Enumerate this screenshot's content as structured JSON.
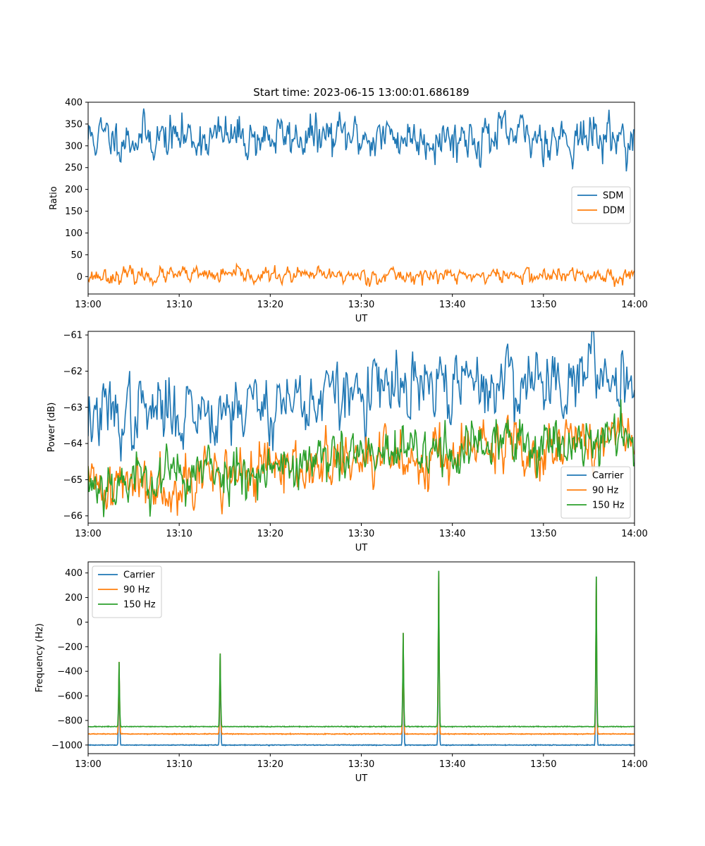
{
  "chart_data": [
    {
      "type": "line",
      "title": "Start time: 2023-06-15 13:00:01.686189",
      "xlabel": "UT",
      "ylabel": "Ratio",
      "xlim": [
        0,
        60
      ],
      "ylim": [
        -40,
        400
      ],
      "xticks": [
        0,
        10,
        20,
        30,
        40,
        50,
        60
      ],
      "xtick_labels": [
        "13:00",
        "13:10",
        "13:20",
        "13:30",
        "13:40",
        "13:50",
        "14:00"
      ],
      "yticks": [
        0,
        50,
        100,
        150,
        200,
        250,
        300,
        350,
        400
      ],
      "ytick_labels": [
        "0",
        "50",
        "100",
        "150",
        "200",
        "250",
        "300",
        "350",
        "400"
      ],
      "legend_position": "center-right",
      "series": [
        {
          "name": "SDM",
          "color": "#1f77b4",
          "mean": 320,
          "noise": 22,
          "trend": 0,
          "seed": 11,
          "points": 600
        },
        {
          "name": "DDM",
          "color": "#ff7f0e",
          "mean": 2,
          "noise": 8,
          "trend": 0,
          "seed": 23,
          "points": 600
        }
      ]
    },
    {
      "type": "line",
      "title": "",
      "xlabel": "UT",
      "ylabel": "Power (dB)",
      "xlim": [
        0,
        60
      ],
      "ylim": [
        -66.2,
        -60.9
      ],
      "xticks": [
        0,
        10,
        20,
        30,
        40,
        50,
        60
      ],
      "xtick_labels": [
        "13:00",
        "13:10",
        "13:20",
        "13:30",
        "13:40",
        "13:50",
        "14:00"
      ],
      "yticks": [
        -66,
        -65,
        -64,
        -63,
        -62,
        -61
      ],
      "ytick_labels": [
        "−66",
        "−65",
        "−64",
        "−63",
        "−62",
        "−61"
      ],
      "legend_position": "lower-right",
      "series": [
        {
          "name": "Carrier",
          "color": "#1f77b4",
          "start": -63.3,
          "end": -62.0,
          "noise": 0.45,
          "seed": 37,
          "points": 500
        },
        {
          "name": "90 Hz",
          "color": "#ff7f0e",
          "start": -65.2,
          "end": -63.8,
          "noise": 0.35,
          "seed": 41,
          "points": 600
        },
        {
          "name": "150 Hz",
          "color": "#2ca02c",
          "start": -65.1,
          "end": -63.7,
          "noise": 0.33,
          "seed": 53,
          "points": 600
        }
      ]
    },
    {
      "type": "line",
      "title": "",
      "xlabel": "UT",
      "ylabel": "Frequency (Hz)",
      "xlim": [
        0,
        60
      ],
      "ylim": [
        -1070,
        490
      ],
      "xticks": [
        0,
        10,
        20,
        30,
        40,
        50,
        60
      ],
      "xtick_labels": [
        "13:00",
        "13:10",
        "13:20",
        "13:30",
        "13:40",
        "13:50",
        "14:00"
      ],
      "yticks": [
        -1000,
        -800,
        -600,
        -400,
        -200,
        0,
        200,
        400
      ],
      "ytick_labels": [
        "−1000",
        "−800",
        "−600",
        "−400",
        "−200",
        "0",
        "200",
        "400"
      ],
      "legend_position": "upper-left",
      "series": [
        {
          "name": "Carrier",
          "color": "#1f77b4",
          "baseline": -1000,
          "noise": 1.5,
          "seed": 61
        },
        {
          "name": "90 Hz",
          "color": "#ff7f0e",
          "baseline": -910,
          "noise": 1.5,
          "seed": 67
        },
        {
          "name": "150 Hz",
          "color": "#2ca02c",
          "baseline": -850,
          "noise": 1.5,
          "seed": 71
        }
      ],
      "spikes": [
        {
          "x": 3.4,
          "peak": -325
        },
        {
          "x": 14.5,
          "peak": -255
        },
        {
          "x": 34.6,
          "peak": -90
        },
        {
          "x": 38.5,
          "peak": 415
        },
        {
          "x": 55.8,
          "peak": 370
        }
      ]
    }
  ]
}
